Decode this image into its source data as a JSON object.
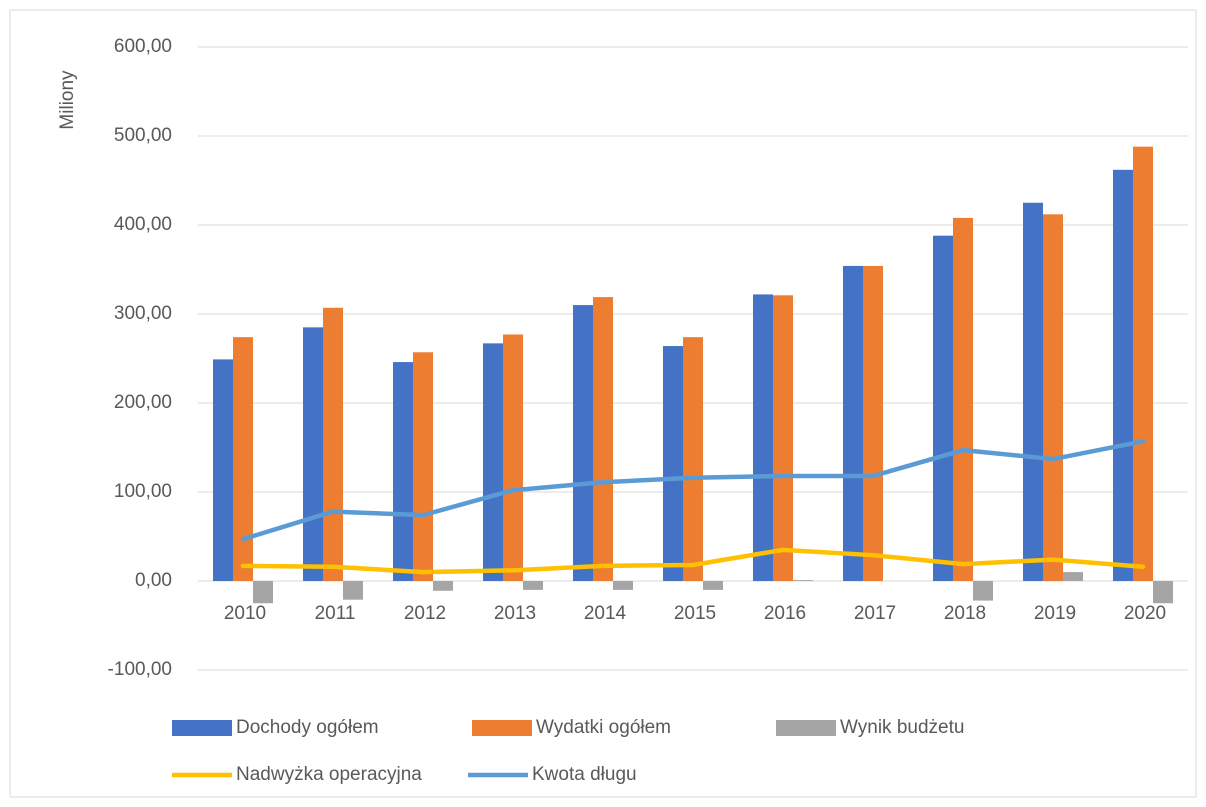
{
  "chart_data": {
    "type": "bar-line",
    "y_label": "Miliony",
    "categories": [
      "2010",
      "2011",
      "2012",
      "2013",
      "2014",
      "2015",
      "2016",
      "2017",
      "2018",
      "2019",
      "2020"
    ],
    "ylim": [
      -100,
      600
    ],
    "yticks": [
      {
        "value": -100,
        "label": "-100,00"
      },
      {
        "value": 0,
        "label": "0,00"
      },
      {
        "value": 100,
        "label": "100,00"
      },
      {
        "value": 200,
        "label": "200,00"
      },
      {
        "value": 300,
        "label": "300,00"
      },
      {
        "value": 400,
        "label": "400,00"
      },
      {
        "value": 500,
        "label": "500,00"
      },
      {
        "value": 600,
        "label": "600,00"
      }
    ],
    "grid": true,
    "series": [
      {
        "name": "Dochody ogółem",
        "kind": "bar",
        "color": "#4472c4",
        "values": [
          249,
          285,
          246,
          267,
          310,
          264,
          322,
          354,
          388,
          425,
          462
        ]
      },
      {
        "name": "Wydatki ogółem",
        "kind": "bar",
        "color": "#ed7d31",
        "values": [
          274,
          307,
          257,
          277,
          319,
          274,
          321,
          354,
          408,
          412,
          488
        ]
      },
      {
        "name": "Wynik budżetu",
        "kind": "bar",
        "color": "#a5a5a5",
        "values": [
          -25,
          -21,
          -11,
          -10,
          -10,
          -10,
          1,
          0,
          -22,
          10,
          -25
        ]
      },
      {
        "name": "Nadwyżka operacyjna",
        "kind": "line",
        "color": "#ffc000",
        "values": [
          17,
          16,
          10,
          12,
          17,
          18,
          35,
          29,
          19,
          24,
          16
        ]
      },
      {
        "name": "Kwota długu",
        "kind": "line",
        "color": "#5b9bd5",
        "values": [
          47,
          78,
          74,
          102,
          111,
          116,
          118,
          118,
          147,
          137,
          157
        ]
      }
    ]
  }
}
